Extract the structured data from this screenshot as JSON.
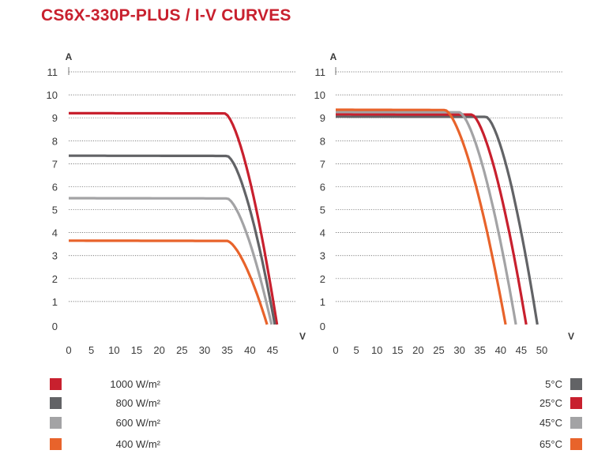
{
  "title": "CS6X-330P-PLUS / I-V CURVES",
  "chart_data": [
    {
      "type": "line",
      "ylabel": "A",
      "xlabel": "V",
      "xlim": [
        0,
        45
      ],
      "ylim": [
        0,
        11
      ],
      "x_ticks": [
        0,
        5,
        10,
        15,
        20,
        25,
        30,
        35,
        40,
        45
      ],
      "y_ticks": [
        0,
        1,
        2,
        3,
        4,
        5,
        6,
        7,
        8,
        9,
        10,
        11
      ],
      "grid": "horizontal dotted",
      "series": [
        {
          "name": "1000 W/m²",
          "color": "#c8202e",
          "isc": 9.2,
          "knee_v": 34.5,
          "voc": 46.0
        },
        {
          "name": "800 W/m²",
          "color": "#626366",
          "isc": 7.35,
          "knee_v": 35.0,
          "voc": 45.5
        },
        {
          "name": "600 W/m²",
          "color": "#a3a3a5",
          "isc": 5.5,
          "knee_v": 35.0,
          "voc": 44.8
        },
        {
          "name": "400 W/m²",
          "color": "#e8632b",
          "isc": 3.65,
          "knee_v": 35.0,
          "voc": 43.8
        }
      ]
    },
    {
      "type": "line",
      "ylabel": "A",
      "xlabel": "V",
      "xlim": [
        0,
        50
      ],
      "ylim": [
        0,
        11
      ],
      "x_ticks": [
        0,
        5,
        10,
        15,
        20,
        25,
        30,
        35,
        40,
        45,
        50
      ],
      "y_ticks": [
        0,
        1,
        2,
        3,
        4,
        5,
        6,
        7,
        8,
        9,
        10,
        11
      ],
      "grid": "horizontal dotted",
      "series": [
        {
          "name": "5°C",
          "color": "#626366",
          "isc": 9.05,
          "knee_v": 36.5,
          "voc": 48.9
        },
        {
          "name": "25°C",
          "color": "#c8202e",
          "isc": 9.15,
          "knee_v": 33.0,
          "voc": 46.2
        },
        {
          "name": "45°C",
          "color": "#a3a3a5",
          "isc": 9.25,
          "knee_v": 30.0,
          "voc": 43.7
        },
        {
          "name": "65°C",
          "color": "#e8632b",
          "isc": 9.35,
          "knee_v": 26.5,
          "voc": 41.2
        }
      ]
    }
  ]
}
